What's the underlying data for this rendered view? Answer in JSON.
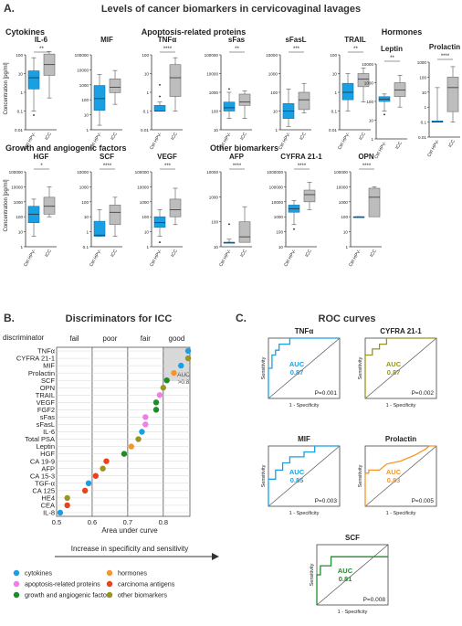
{
  "panel_a": {
    "letter": "A.",
    "title": "Levels of cancer biomarkers in cervicovaginal lavages",
    "groups": {
      "cytokines": "Cytokines",
      "apoptosis": "Apoptosis-related proteins",
      "hormones": "Hormones",
      "growth": "Growth and angiogenic factors",
      "other": "Other biomarkers"
    },
    "y_axis_label": "Concentration [pg/ml]",
    "x_tick_ctrl": "Ctrl HPV-",
    "x_tick_icc": "ICC"
  },
  "panel_b": {
    "letter": "B.",
    "title": "Discriminators for ICC",
    "discriminator_label": "discriminator",
    "band_labels": [
      "fail",
      "poor",
      "fair",
      "good"
    ],
    "xlabel": "Area under curve",
    "arrow_caption": "Increase in specificity and sensitivity",
    "auc_box_label_1": "AUC",
    "auc_box_label_2": ">0.8",
    "legend": [
      {
        "label": "cytokines",
        "color": "#1a9fe3"
      },
      {
        "label": "hormones",
        "color": "#f5962b"
      },
      {
        "label": "apoptosis-related proteins",
        "color": "#f07de8"
      },
      {
        "label": "carcinoma antigens",
        "color": "#e8431c"
      },
      {
        "label": "growth and angiogenic factors",
        "color": "#1f8c2a"
      },
      {
        "label": "other biomarkers",
        "color": "#9a9424"
      }
    ]
  },
  "panel_c": {
    "letter": "C.",
    "title": "ROC curves",
    "xlabel": "1 - Specificity",
    "ylabel": "Sensitivity",
    "auc_word": "AUC"
  },
  "chart_data": [
    {
      "type": "box",
      "title": "Levels of cancer biomarkers in cervicovaginal lavages",
      "ylabel": "Concentration [pg/ml]",
      "ylog": true,
      "categories": [
        "Ctrl HPV-",
        "ICC"
      ],
      "panels": [
        {
          "name": "IL-6",
          "group": "Cytokines",
          "sig": "**",
          "ymin": 0.01,
          "ymax": 100,
          "ticks": [
            "100",
            "10",
            "1",
            "0.1",
            "0.01"
          ],
          "boxes": [
            {
              "lo": 0.1,
              "q1": 1.5,
              "med": 6,
              "q3": 14,
              "hi": 70
            },
            {
              "lo": 0.5,
              "q1": 8,
              "med": 30,
              "q3": 110,
              "hi": 150
            }
          ],
          "outliers": [
            [
              0.06
            ],
            []
          ]
        },
        {
          "name": "MIF",
          "group": "Cytokines",
          "sig": "",
          "ymin": 1,
          "ymax": 100000,
          "ticks": [
            "100000",
            "10000",
            "1000",
            "100",
            "10",
            "1"
          ],
          "boxes": [
            {
              "lo": 2,
              "q1": 20,
              "med": 120,
              "q3": 900,
              "hi": 5000
            },
            {
              "lo": 50,
              "q1": 300,
              "med": 700,
              "q3": 2500,
              "hi": 9000
            }
          ],
          "outliers": [
            [],
            []
          ]
        },
        {
          "name": "TNFα",
          "group": "Cytokines",
          "sig": "****",
          "ymin": 0.01,
          "ymax": 100,
          "ticks": [
            "100",
            "10",
            "1",
            "0.1",
            "0.01"
          ],
          "boxes": [
            {
              "lo": 0.1,
              "q1": 0.1,
              "med": 0.1,
              "q3": 0.2,
              "hi": 0.3
            },
            {
              "lo": 0.1,
              "q1": 0.6,
              "med": 6,
              "q3": 30,
              "hi": 70
            }
          ],
          "outliers": [
            [
              0.6,
              2.5
            ],
            []
          ]
        },
        {
          "name": "sFas",
          "group": "Apoptosis-related proteins",
          "sig": "**",
          "ymin": 10,
          "ymax": 100000,
          "ticks": [
            "100000",
            "10000",
            "1000",
            "100",
            "10"
          ],
          "boxes": [
            {
              "lo": 40,
              "q1": 100,
              "med": 150,
              "q3": 300,
              "hi": 1000
            },
            {
              "lo": 40,
              "q1": 200,
              "med": 300,
              "q3": 800,
              "hi": 1200
            }
          ],
          "outliers": [
            [
              1500
            ],
            []
          ]
        },
        {
          "name": "sFasL",
          "group": "Apoptosis-related proteins",
          "sig": "***",
          "ymin": 1,
          "ymax": 10000,
          "ticks": [
            "10000",
            "1000",
            "100",
            "10",
            "1"
          ],
          "boxes": [
            {
              "lo": 1.5,
              "q1": 4,
              "med": 10,
              "q3": 25,
              "hi": 150
            },
            {
              "lo": 8,
              "q1": 12,
              "med": 40,
              "q3": 100,
              "hi": 300
            }
          ],
          "outliers": [
            [],
            []
          ]
        },
        {
          "name": "TRAIL",
          "group": "Apoptosis-related proteins",
          "sig": "**",
          "ymin": 0.01,
          "ymax": 100,
          "ticks": [
            "100",
            "10",
            "1",
            "0.1",
            "0.01"
          ],
          "boxes": [
            {
              "lo": 0.1,
              "q1": 0.4,
              "med": 1,
              "q3": 3,
              "hi": 10
            },
            {
              "lo": 0.3,
              "q1": 2,
              "med": 5,
              "q3": 10,
              "hi": 20
            }
          ],
          "outliers": [
            [],
            []
          ]
        },
        {
          "name": "Leptin",
          "group": "Hormones",
          "sig": "**",
          "ymin": 1,
          "ymax": 10000,
          "ticks": [
            "10000",
            "1000",
            "100",
            "10",
            "1"
          ],
          "boxes": [
            {
              "lo": 30,
              "q1": 100,
              "med": 130,
              "q3": 180,
              "hi": 250
            },
            {
              "lo": 50,
              "q1": 180,
              "med": 400,
              "q3": 1000,
              "hi": 2500
            }
          ],
          "outliers": [
            [
              20
            ],
            []
          ]
        },
        {
          "name": "Prolactin",
          "group": "Hormones",
          "sig": "****",
          "ymin": 0.01,
          "ymax": 1000,
          "ticks": [
            "1000",
            "100",
            "10",
            "1",
            "0.1",
            "0.01"
          ],
          "boxes": [
            {
              "lo": 0.1,
              "q1": 0.1,
              "med": 0.1,
              "q3": 0.12,
              "hi": 20
            },
            {
              "lo": 0.1,
              "q1": 0.5,
              "med": 20,
              "q3": 100,
              "hi": 500
            }
          ],
          "outliers": [
            [],
            []
          ]
        },
        {
          "name": "HGF",
          "group": "Growth and angiogenic factors",
          "sig": "*",
          "ymin": 1,
          "ymax": 100000,
          "ticks": [
            "100000",
            "10000",
            "1000",
            "100",
            "10",
            "1"
          ],
          "boxes": [
            {
              "lo": 5,
              "q1": 40,
              "med": 150,
              "q3": 500,
              "hi": 1500
            },
            {
              "lo": 100,
              "q1": 150,
              "med": 500,
              "q3": 2000,
              "hi": 10000
            }
          ],
          "outliers": [
            [],
            []
          ]
        },
        {
          "name": "SCF",
          "group": "Growth and angiogenic factors",
          "sig": "****",
          "ymin": 0.1,
          "ymax": 10000,
          "ticks": [
            "10000",
            "1000",
            "100",
            "10",
            "1",
            "0.1"
          ],
          "boxes": [
            {
              "lo": 0.5,
              "q1": 0.5,
              "med": 0.6,
              "q3": 5,
              "hi": 30
            },
            {
              "lo": 0.5,
              "q1": 3,
              "med": 20,
              "q3": 60,
              "hi": 200
            }
          ],
          "outliers": [
            [],
            []
          ]
        },
        {
          "name": "VEGF",
          "group": "Growth and angiogenic factors",
          "sig": "***",
          "ymin": 1,
          "ymax": 100000,
          "ticks": [
            "100000",
            "10000",
            "1000",
            "100",
            "10",
            "1"
          ],
          "boxes": [
            {
              "lo": 5,
              "q1": 20,
              "med": 40,
              "q3": 100,
              "hi": 300
            },
            {
              "lo": 30,
              "q1": 100,
              "med": 300,
              "q3": 1500,
              "hi": 8000
            }
          ],
          "outliers": [
            [
              2
            ],
            []
          ]
        },
        {
          "name": "AFP",
          "group": "Other biomarkers",
          "sig": "****",
          "ymin": 10,
          "ymax": 10000,
          "ticks": [
            "10000",
            "1000",
            "100",
            "10"
          ],
          "boxes": [
            {
              "lo": 15,
              "q1": 15,
              "med": 15,
              "q3": 15,
              "hi": 20
            },
            {
              "lo": 15,
              "q1": 15,
              "med": 25,
              "q3": 100,
              "hi": 400
            }
          ],
          "outliers": [
            [
              80
            ],
            []
          ]
        },
        {
          "name": "CYFRA 21-1",
          "group": "Other biomarkers",
          "sig": "****",
          "ymin": 10,
          "ymax": 1000000,
          "ticks": [
            "1000000",
            "100000",
            "10000",
            "1000",
            "100",
            "10"
          ],
          "boxes": [
            {
              "lo": 300,
              "q1": 2000,
              "med": 3500,
              "q3": 6000,
              "hi": 12000
            },
            {
              "lo": 3000,
              "q1": 10000,
              "med": 30000,
              "q3": 60000,
              "hi": 200000
            }
          ],
          "outliers": [
            [
              150
            ],
            []
          ]
        },
        {
          "name": "OPN",
          "group": "Other biomarkers",
          "sig": "****",
          "ymin": 1,
          "ymax": 100000,
          "ticks": [
            "100000",
            "10000",
            "1000",
            "100",
            "10",
            "1"
          ],
          "boxes": [
            {
              "lo": 100,
              "q1": 100,
              "med": 100,
              "q3": 100,
              "hi": 100
            },
            {
              "lo": 100,
              "q1": 100,
              "med": 2000,
              "q3": 8000,
              "hi": 10000
            }
          ],
          "outliers": [
            [],
            []
          ]
        }
      ]
    },
    {
      "type": "scatter",
      "title": "Discriminators for ICC",
      "xlabel": "Area under curve",
      "xlim": [
        0.5,
        0.875
      ],
      "xticks": [
        "0.5",
        "0.6",
        "0.7",
        "0.8"
      ],
      "bands": [
        [
          0.5,
          0.6,
          "fail"
        ],
        [
          0.6,
          0.7,
          "poor"
        ],
        [
          0.7,
          0.8,
          "fair"
        ],
        [
          0.8,
          0.875,
          "good"
        ]
      ],
      "threshold": 0.8,
      "points": [
        {
          "label": "TNFα",
          "auc": 0.87,
          "cat": "cytokines"
        },
        {
          "label": "CYFRA 21-1",
          "auc": 0.87,
          "cat": "other biomarkers"
        },
        {
          "label": "MIF",
          "auc": 0.85,
          "cat": "cytokines"
        },
        {
          "label": "Prolactin",
          "auc": 0.83,
          "cat": "hormones"
        },
        {
          "label": "SCF",
          "auc": 0.81,
          "cat": "growth and angiogenic factors"
        },
        {
          "label": "OPN",
          "auc": 0.8,
          "cat": "other biomarkers"
        },
        {
          "label": "TRAIL",
          "auc": 0.79,
          "cat": "apoptosis-related proteins"
        },
        {
          "label": "VEGF",
          "auc": 0.78,
          "cat": "growth and angiogenic factors"
        },
        {
          "label": "FGF2",
          "auc": 0.78,
          "cat": "growth and angiogenic factors"
        },
        {
          "label": "sFas",
          "auc": 0.75,
          "cat": "apoptosis-related proteins"
        },
        {
          "label": "sFasL",
          "auc": 0.75,
          "cat": "apoptosis-related proteins"
        },
        {
          "label": "IL-6",
          "auc": 0.74,
          "cat": "cytokines"
        },
        {
          "label": "Total PSA",
          "auc": 0.73,
          "cat": "other biomarkers"
        },
        {
          "label": "Leptin",
          "auc": 0.71,
          "cat": "hormones"
        },
        {
          "label": "HGF",
          "auc": 0.69,
          "cat": "growth and angiogenic factors"
        },
        {
          "label": "CA 19-9",
          "auc": 0.64,
          "cat": "carcinoma antigens"
        },
        {
          "label": "AFP",
          "auc": 0.63,
          "cat": "other biomarkers"
        },
        {
          "label": "CA 15-3",
          "auc": 0.61,
          "cat": "carcinoma antigens"
        },
        {
          "label": "TGF-α",
          "auc": 0.59,
          "cat": "cytokines"
        },
        {
          "label": "CA 125",
          "auc": 0.58,
          "cat": "carcinoma antigens"
        },
        {
          "label": "HE4",
          "auc": 0.53,
          "cat": "other biomarkers"
        },
        {
          "label": "CEA",
          "auc": 0.53,
          "cat": "carcinoma antigens"
        },
        {
          "label": "IL-8",
          "auc": 0.51,
          "cat": "cytokines"
        }
      ]
    },
    {
      "type": "line",
      "title": "ROC curves",
      "xlabel": "1 - Specificity",
      "ylabel": "Sensitivity",
      "panels": [
        {
          "name": "TNFα",
          "auc": "0.87",
          "p": "P=0.001",
          "color": "#1a9fe3",
          "points": [
            [
              0,
              0
            ],
            [
              0,
              0.5
            ],
            [
              0.05,
              0.5
            ],
            [
              0.05,
              0.72
            ],
            [
              0.1,
              0.72
            ],
            [
              0.1,
              0.8
            ],
            [
              0.15,
              0.8
            ],
            [
              0.15,
              0.9
            ],
            [
              0.3,
              0.9
            ],
            [
              0.3,
              1
            ],
            [
              1,
              1
            ]
          ]
        },
        {
          "name": "CYFRA 21-1",
          "auc": "0.87",
          "p": "P=0.002",
          "color": "#9a9424",
          "points": [
            [
              0,
              0
            ],
            [
              0,
              0.72
            ],
            [
              0.1,
              0.72
            ],
            [
              0.1,
              0.82
            ],
            [
              0.2,
              0.82
            ],
            [
              0.2,
              0.9
            ],
            [
              0.3,
              0.9
            ],
            [
              0.3,
              1
            ],
            [
              1,
              1
            ]
          ]
        },
        {
          "name": "MIF",
          "auc": "0.85",
          "p": "P=0.003",
          "color": "#1a9fe3",
          "points": [
            [
              0,
              0
            ],
            [
              0,
              0.45
            ],
            [
              0.1,
              0.45
            ],
            [
              0.1,
              0.6
            ],
            [
              0.2,
              0.6
            ],
            [
              0.2,
              0.72
            ],
            [
              0.3,
              0.72
            ],
            [
              0.3,
              0.82
            ],
            [
              0.5,
              0.82
            ],
            [
              0.5,
              0.9
            ],
            [
              0.65,
              0.9
            ],
            [
              0.65,
              1
            ],
            [
              1,
              1
            ]
          ]
        },
        {
          "name": "Prolactin",
          "auc": "0.83",
          "p": "P=0.005",
          "color": "#f5962b",
          "points": [
            [
              0,
              0
            ],
            [
              0,
              0.55
            ],
            [
              0.05,
              0.55
            ],
            [
              0.05,
              0.6
            ],
            [
              0.2,
              0.6
            ],
            [
              0.3,
              0.7
            ],
            [
              0.5,
              0.75
            ],
            [
              0.7,
              0.85
            ],
            [
              0.85,
              0.95
            ],
            [
              0.9,
              1
            ],
            [
              1,
              1
            ]
          ]
        },
        {
          "name": "SCF",
          "auc": "0.81",
          "p": "P=0.008",
          "color": "#1f8c2a",
          "points": [
            [
              0,
              0
            ],
            [
              0,
              0.5
            ],
            [
              0.05,
              0.5
            ],
            [
              0.05,
              0.65
            ],
            [
              0.2,
              0.65
            ],
            [
              0.2,
              0.8
            ],
            [
              0.4,
              0.8
            ],
            [
              0.4,
              0.8
            ],
            [
              1,
              0.8
            ]
          ]
        }
      ]
    }
  ]
}
